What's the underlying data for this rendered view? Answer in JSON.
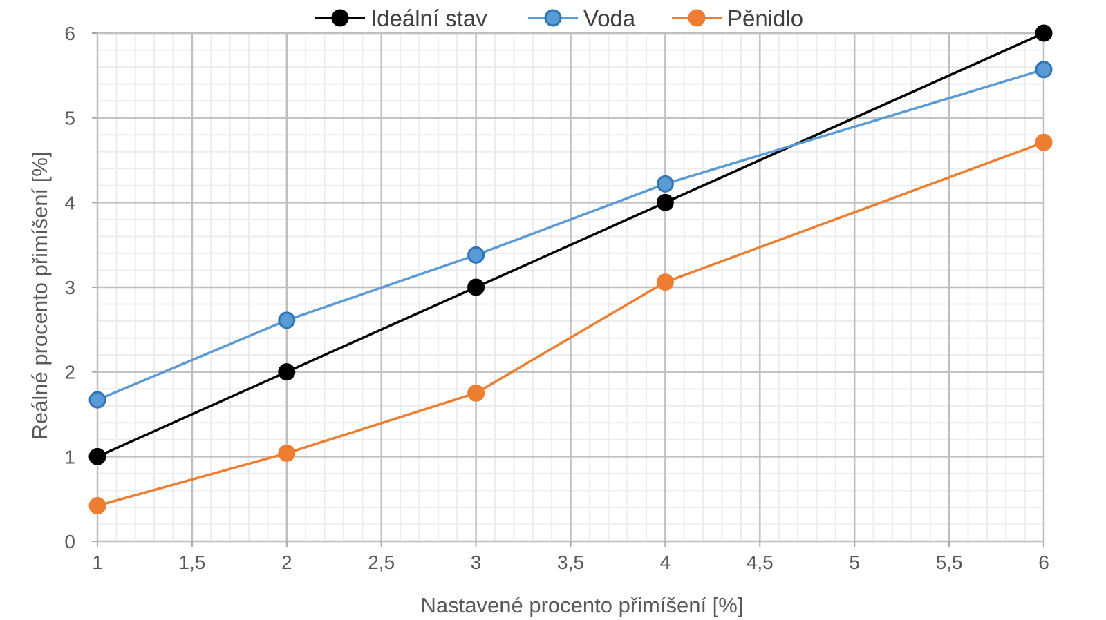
{
  "chart_data": {
    "type": "line",
    "title": "",
    "xlabel": "Nastavené procento přimíšení [%]",
    "ylabel": "Reálné procento přimíšení [%]",
    "xlim": [
      1,
      6
    ],
    "ylim": [
      0,
      6
    ],
    "x_ticks": [
      "1",
      "1,5",
      "2",
      "2,5",
      "3",
      "3,5",
      "4",
      "4,5",
      "5",
      "5,5",
      "6"
    ],
    "y_ticks": [
      "0",
      "1",
      "2",
      "3",
      "4",
      "5",
      "6"
    ],
    "x_tick_values": [
      1,
      1.5,
      2,
      2.5,
      3,
      3.5,
      4,
      4.5,
      5,
      5.5,
      6
    ],
    "y_tick_values": [
      0,
      1,
      2,
      3,
      4,
      5,
      6
    ],
    "grid": true,
    "legend_position": "top",
    "series": [
      {
        "name": "Ideální stav",
        "color": "#000000",
        "marker_fill": "#000000",
        "x": [
          1,
          2,
          3,
          4,
          6
        ],
        "values": [
          1,
          2,
          3,
          4,
          6
        ]
      },
      {
        "name": "Voda",
        "color": "#5B9BD5",
        "marker_fill": "#5B9BD5",
        "marker_stroke": "#2E75B6",
        "x": [
          1,
          2,
          3,
          4,
          6
        ],
        "values": [
          1.67,
          2.61,
          3.38,
          4.22,
          5.57
        ]
      },
      {
        "name": "Pěnidlo",
        "color": "#ED7D31",
        "marker_fill": "#ED7D31",
        "x": [
          1,
          2,
          3,
          4,
          6
        ],
        "values": [
          0.42,
          1.04,
          1.75,
          3.06,
          4.71
        ]
      }
    ]
  }
}
